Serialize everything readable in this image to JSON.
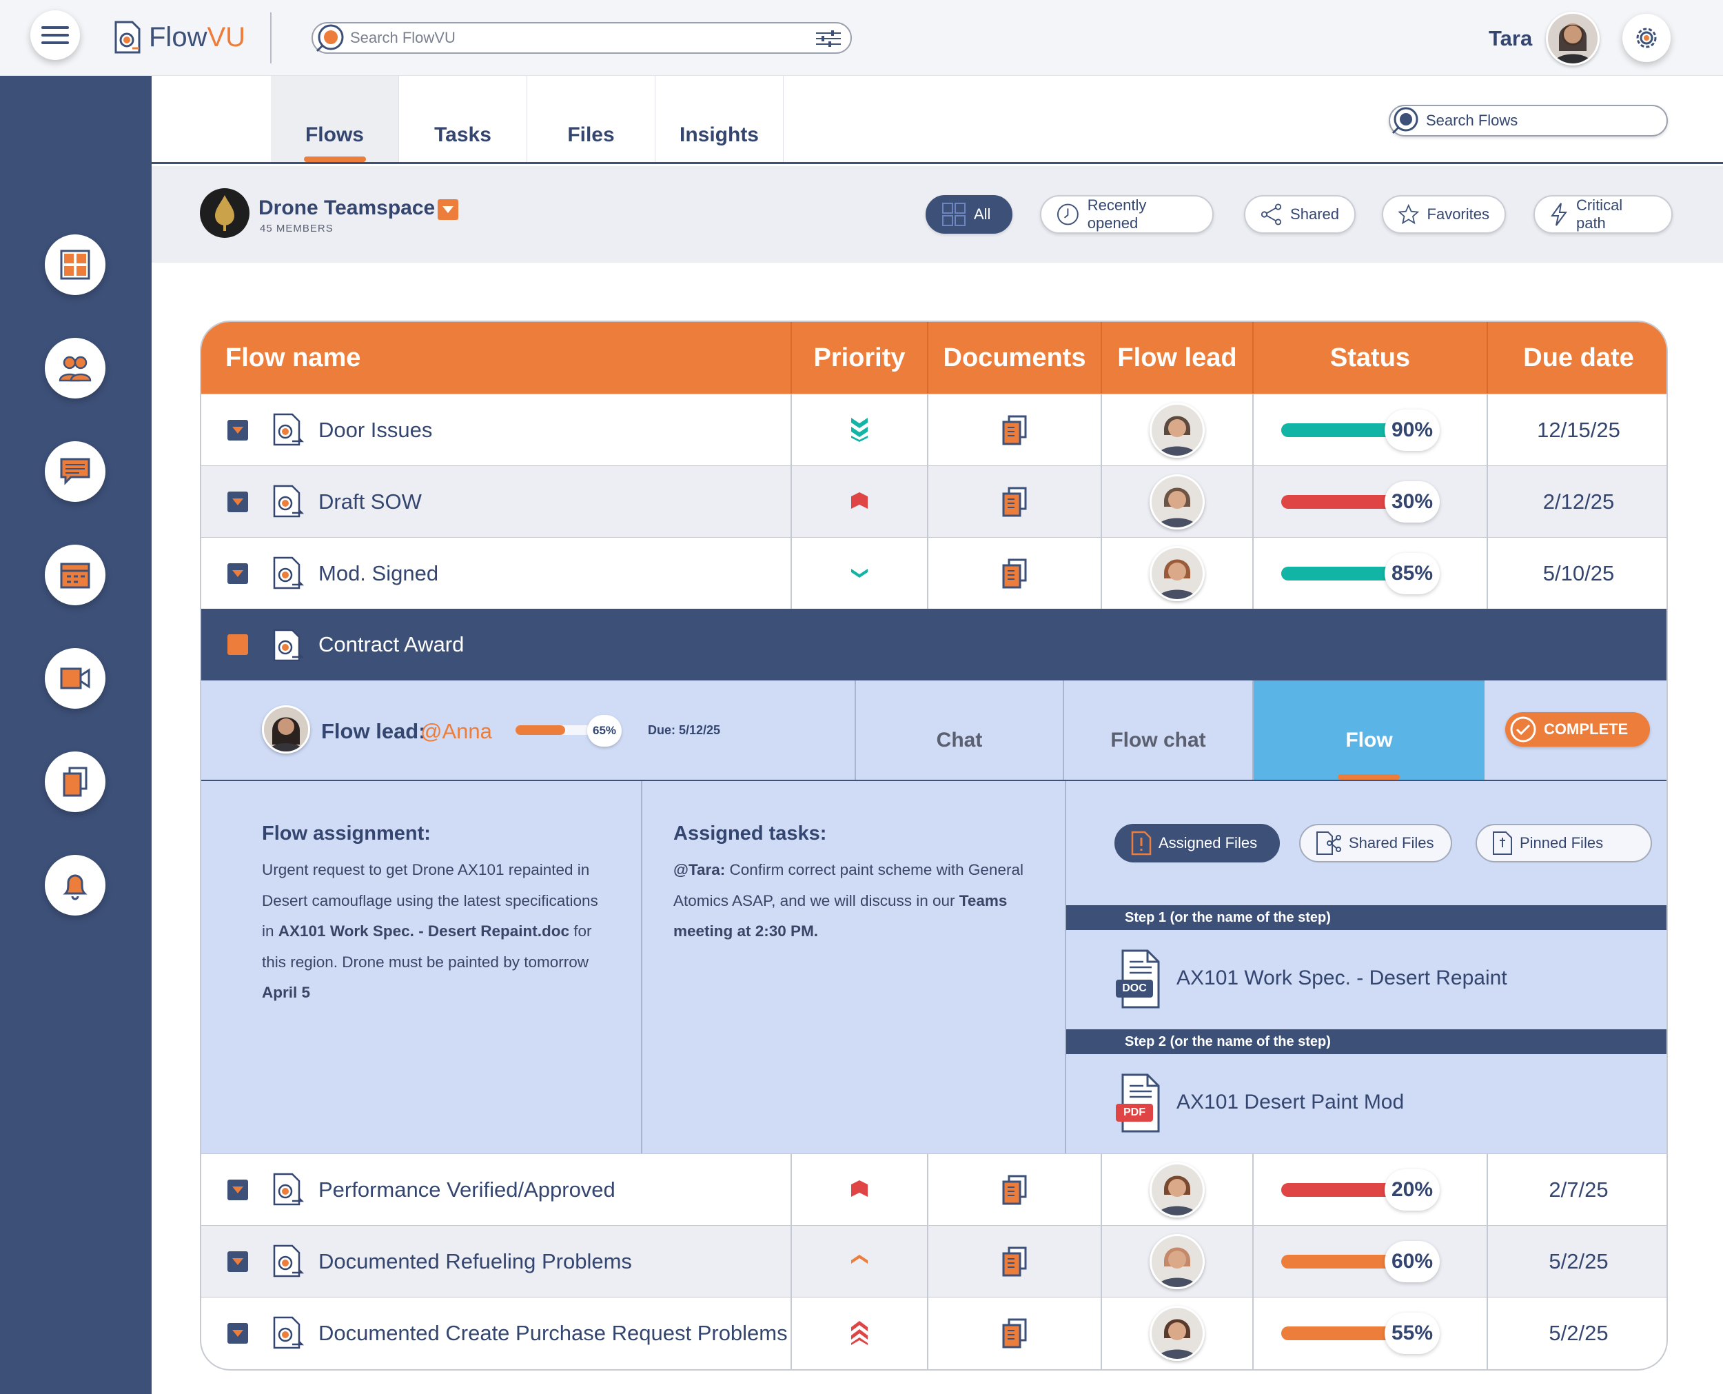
{
  "app": {
    "name_flow": "Flow",
    "name_vu": "VU",
    "search_placeholder": "Search FlowVU"
  },
  "user": {
    "name": "Tara"
  },
  "tabs": [
    {
      "label": "Flows"
    },
    {
      "label": "Tasks"
    },
    {
      "label": "Files"
    },
    {
      "label": "Insights"
    }
  ],
  "search_flows": {
    "placeholder": "Search Flows"
  },
  "team": {
    "name": "Drone Teamspace",
    "members": "45 MEMBERS"
  },
  "filters": [
    {
      "label": "All",
      "icon": "grid-icon"
    },
    {
      "label": "Recently opened",
      "icon": "clock-icon"
    },
    {
      "label": "Shared",
      "icon": "share-icon"
    },
    {
      "label": "Favorites",
      "icon": "star-icon"
    },
    {
      "label": "Critical path",
      "icon": "lightning-icon"
    }
  ],
  "sidebar": {
    "icons": [
      "dashboard-icon",
      "team-icon",
      "chat-icon",
      "calendar-icon",
      "video-icon",
      "documents-icon",
      "bell-icon"
    ]
  },
  "table": {
    "headers": [
      "Flow name",
      "Priority",
      "Documents",
      "Flow lead",
      "Status",
      "Due date"
    ],
    "rows_top": [
      {
        "name": "Door Issues",
        "priority": "lowest",
        "status": "90%",
        "progress": 0.9,
        "color": "#12b5a5",
        "due": "12/15/25",
        "avatar": "#5c4a3e"
      },
      {
        "name": "Draft SOW",
        "priority": "high",
        "status": "30%",
        "progress": 0.3,
        "color": "#e04545",
        "due": "2/12/25",
        "avatar": "#6d5546"
      },
      {
        "name": "Mod. Signed",
        "priority": "low",
        "status": "85%",
        "progress": 0.85,
        "color": "#12b5a5",
        "due": "5/10/25",
        "avatar": "#9a5b3a"
      }
    ],
    "expanded": {
      "name": "Contract Award",
      "lead_label": "Flow lead:",
      "lead_handle": "@Anna",
      "progress_text": "65%",
      "progress": 0.65,
      "due": "Due: 5/12/25",
      "tabs": [
        "Chat",
        "Flow chat",
        "Flow"
      ],
      "complete": "COMPLETE",
      "assignment_title": "Flow assignment:",
      "assignment_text_1": "Urgent request to get Drone AX101 repainted in Desert camouflage using the latest specifications in ",
      "assignment_bold_1": "AX101 Work Spec. - Desert Repaint.doc",
      "assignment_text_2": " for this region. Drone must be painted by tomorrow ",
      "assignment_bold_2": "April 5",
      "tasks_title": "Assigned tasks:",
      "tasks_bold_1": "@Tara:",
      "tasks_text_1": " Confirm correct paint scheme with General Atomics ASAP, and we will discuss in our ",
      "tasks_bold_2": "Teams meeting at 2:30 PM.",
      "file_tabs": [
        "Assigned Files",
        "Shared Files",
        "Pinned Files"
      ],
      "steps": [
        {
          "label": "Step 1 (or the name of the step)",
          "file": "AX101 Work Spec. - Desert Repaint",
          "type": "DOC",
          "type_color": "#3d5078"
        },
        {
          "label": "Step 2 (or the name of the step)",
          "file": "AX101 Desert Paint Mod",
          "type": "PDF",
          "type_color": "#e04545"
        }
      ]
    },
    "rows_bottom": [
      {
        "name": "Performance Verified/Approved",
        "priority": "high",
        "status": "20%",
        "progress": 0.2,
        "color": "#e04545",
        "due": "2/7/25",
        "avatar": "#7a4a30"
      },
      {
        "name": "Documented Refueling Problems",
        "priority": "medium",
        "status": "60%",
        "progress": 0.6,
        "color": "#ed7d3a",
        "due": "5/2/25",
        "avatar": "#c4886a"
      },
      {
        "name": "Documented Create Purchase Request Problems",
        "priority": "highest",
        "status": "55%",
        "progress": 0.55,
        "color": "#ed7d3a",
        "due": "5/2/25",
        "avatar": "#5a3a2a"
      }
    ]
  },
  "colors": {
    "accent": "#ed7d3a",
    "navy": "#3d5078",
    "teal": "#12b5a5",
    "red": "#e04545",
    "light_blue": "#5ab4e6",
    "panel": "#d0dcf6"
  }
}
